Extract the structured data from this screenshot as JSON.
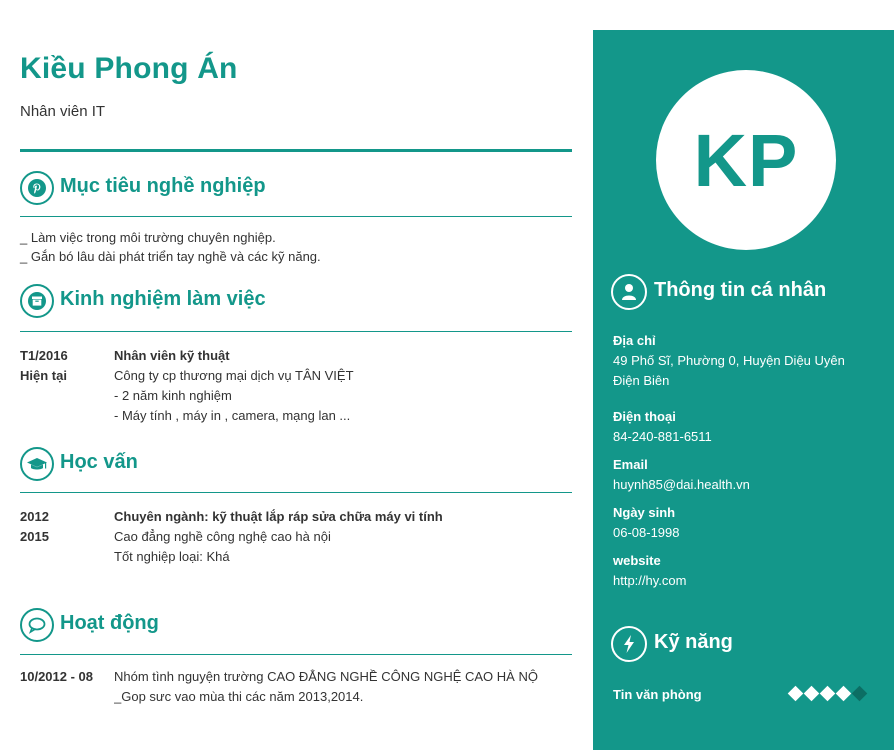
{
  "profile": {
    "name": "Kiều Phong Án",
    "job_title": "Nhân viên IT",
    "initials": "KP"
  },
  "sections": {
    "objective": {
      "title": "Mục tiêu nghề nghiệp",
      "icon": "pinterest-icon",
      "lines": [
        "_ Làm việc trong môi trường chuyên nghiệp.",
        "_ Gắn bó lâu dài phát triển tay nghề và các kỹ năng."
      ]
    },
    "experience": {
      "title": "Kinh nghiệm làm việc",
      "icon": "archive-box-icon",
      "items": [
        {
          "date_start": "T1/2016",
          "date_end": "Hiện tại",
          "position": "Nhân viên kỹ thuật",
          "company": "Công ty cp thương mại dịch vụ TÂN VIỆT",
          "details": [
            "- 2 năm kinh nghiệm",
            "- Máy tính , máy in , camera,  mạng lan ..."
          ]
        }
      ]
    },
    "education": {
      "title": "Học vấn",
      "icon": "graduation-cap-icon",
      "items": [
        {
          "date_start": "2012",
          "date_end": "2015",
          "major": "Chuyên ngành: kỹ thuật lắp ráp sửa chữa máy vi tính",
          "school": "Cao đẳng nghề công nghệ cao hà nội",
          "result": "Tốt nghiệp loại: Khá"
        }
      ]
    },
    "activities": {
      "title": "Hoạt động",
      "icon": "speech-bubble-icon",
      "items": [
        {
          "date": "10/2012  - 08",
          "line1": "Nhóm tình nguyện trường CAO ĐẲNG NGHỀ CÔNG NGHỆ CAO HÀ NỘ",
          "line2": "_Gop sưc vao mùa thi các năm  2013,2014."
        }
      ]
    }
  },
  "personal": {
    "title": "Thông tin cá nhân",
    "icon": "user-icon",
    "address_label": "Địa chỉ",
    "address_line1": "49 Phố Sĩ, Phường 0, Huyện Diệu Uyên",
    "address_line2": "Điện Biên",
    "phone_label": "Điện thoại",
    "phone": "84-240-881-6511",
    "email_label": "Email",
    "email": "huynh85@dai.health.vn",
    "dob_label": "Ngày sinh",
    "dob": "06-08-1998",
    "website_label": "website",
    "website": "http://hy.com"
  },
  "skills": {
    "title": "Kỹ năng",
    "icon": "lightning-bolt-icon",
    "items": [
      {
        "name": "Tin văn phòng",
        "level": 4,
        "max": 5
      }
    ]
  },
  "colors": {
    "accent": "#13978a",
    "text": "#333333"
  }
}
